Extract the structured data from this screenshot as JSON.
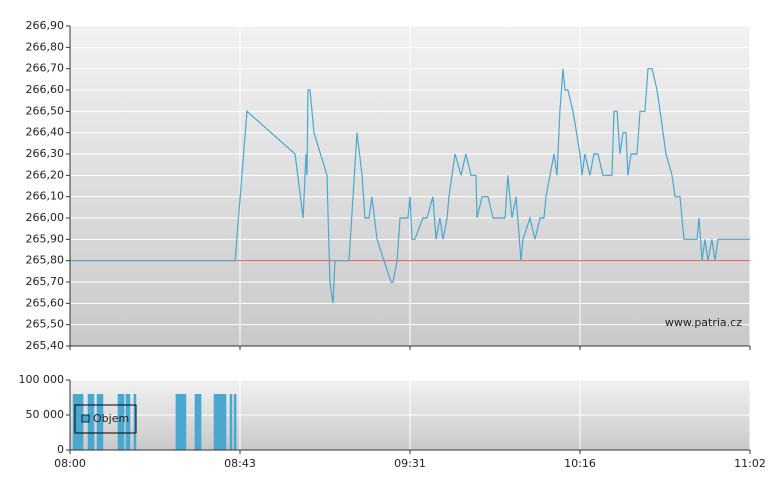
{
  "chart_data": [
    {
      "type": "line",
      "annotation": "www.patria.cz",
      "ylim": [
        265.4,
        266.9
      ],
      "yticks": [
        {
          "value": 265.4,
          "label": "265,40"
        },
        {
          "value": 265.5,
          "label": "265,50"
        },
        {
          "value": 265.6,
          "label": "265,60"
        },
        {
          "value": 265.7,
          "label": "265,70"
        },
        {
          "value": 265.8,
          "label": "265,80"
        },
        {
          "value": 265.9,
          "label": "265,90"
        },
        {
          "value": 266.0,
          "label": "266,00"
        },
        {
          "value": 266.1,
          "label": "266,10"
        },
        {
          "value": 266.2,
          "label": "266,20"
        },
        {
          "value": 266.3,
          "label": "266,30"
        },
        {
          "value": 266.4,
          "label": "266,40"
        },
        {
          "value": 266.5,
          "label": "266,50"
        },
        {
          "value": 266.6,
          "label": "266,60"
        },
        {
          "value": 266.7,
          "label": "266,70"
        },
        {
          "value": 266.8,
          "label": "266,80"
        },
        {
          "value": 266.9,
          "label": "266,90"
        }
      ],
      "reference": {
        "value": 265.8,
        "color": "#e06060"
      },
      "grid": true,
      "series": [
        {
          "color": "#4aa8d0",
          "x": [
            0,
            0.971,
            1.041,
            1.324,
            1.371,
            1.388,
            1.394,
            1.4,
            1.412,
            1.435,
            1.512,
            1.529,
            1.547,
            1.559,
            1.641,
            1.688,
            1.718,
            1.735,
            1.759,
            1.776,
            1.806,
            1.888,
            1.9,
            1.924,
            1.941,
            1.988,
            2.0,
            2.012,
            2.029,
            2.076,
            2.1,
            2.135,
            2.153,
            2.176,
            2.194,
            2.218,
            2.229,
            2.265,
            2.3,
            2.329,
            2.359,
            2.388,
            2.394,
            2.424,
            2.459,
            2.488,
            2.559,
            2.576,
            2.6,
            2.624,
            2.653,
            2.665,
            2.706,
            2.735,
            2.765,
            2.788,
            2.8,
            2.847,
            2.865,
            2.882,
            2.9,
            2.912,
            2.929,
            2.959,
            3.0,
            3.012,
            3.029,
            3.059,
            3.082,
            3.106,
            3.135,
            3.153,
            3.188,
            3.2,
            3.218,
            3.235,
            3.253,
            3.271,
            3.282,
            3.3,
            3.335,
            3.353,
            3.382,
            3.4,
            3.424,
            3.453,
            3.471,
            3.506,
            3.541,
            3.559,
            3.588,
            3.612,
            3.688,
            3.7,
            3.718,
            3.735,
            3.753,
            3.776,
            3.794,
            3.812,
            4
          ],
          "values": [
            265.8,
            265.8,
            266.5,
            266.3,
            266.0,
            266.3,
            266.2,
            266.6,
            266.6,
            266.4,
            266.2,
            265.7,
            265.6,
            265.8,
            265.8,
            266.4,
            266.2,
            266.0,
            266.0,
            266.1,
            265.9,
            265.7,
            265.7,
            265.8,
            266.0,
            266.0,
            266.1,
            265.9,
            265.9,
            266.0,
            266.0,
            266.1,
            265.9,
            266.0,
            265.9,
            266.0,
            266.1,
            266.3,
            266.2,
            266.3,
            266.2,
            266.2,
            266.0,
            266.1,
            266.1,
            266.0,
            266.0,
            266.2,
            266.0,
            266.1,
            265.8,
            265.9,
            266.0,
            265.9,
            266.0,
            266.0,
            266.1,
            266.3,
            266.2,
            266.5,
            266.7,
            266.6,
            266.6,
            266.5,
            266.3,
            266.2,
            266.3,
            266.2,
            266.3,
            266.3,
            266.2,
            266.2,
            266.2,
            266.5,
            266.5,
            266.3,
            266.4,
            266.4,
            266.2,
            266.3,
            266.3,
            266.5,
            266.5,
            266.7,
            266.7,
            266.6,
            266.5,
            266.3,
            266.2,
            266.1,
            266.1,
            265.9,
            265.9,
            266.0,
            265.8,
            265.9,
            265.8,
            265.9,
            265.8,
            265.9,
            265.9
          ]
        }
      ]
    },
    {
      "type": "bar",
      "xlim": [
        0,
        4
      ],
      "xticks": [
        {
          "value": 0,
          "label": "08:00"
        },
        {
          "value": 1,
          "label": "08:43"
        },
        {
          "value": 2,
          "label": "09:31"
        },
        {
          "value": 3,
          "label": "10:16"
        },
        {
          "value": 4,
          "label": "11:02"
        }
      ],
      "ylim": [
        0,
        100000
      ],
      "yticks": [
        0,
        {
          "value": 50000,
          "label": "50 000"
        },
        {
          "value": 100000,
          "label": "100 000"
        }
      ],
      "grid": true,
      "series": [
        {
          "name": "Objem",
          "color": "#4aa8d0",
          "x": [
            0.024,
            0.035,
            0.047,
            0.059,
            0.071,
            0.112,
            0.124,
            0.135,
            0.165,
            0.176,
            0.188,
            0.288,
            0.3,
            0.312,
            0.335,
            0.347,
            0.382,
            0.629,
            0.641,
            0.653,
            0.665,
            0.676,
            0.741,
            0.753,
            0.765,
            0.853,
            0.865,
            0.876,
            0.888,
            0.9,
            0.912,
            0.947,
            0.971
          ],
          "values": [
            80000,
            80000,
            80000,
            80000,
            80000,
            80000,
            80000,
            80000,
            80000,
            80000,
            80000,
            80000,
            80000,
            80000,
            80000,
            80000,
            80000,
            80000,
            80000,
            80000,
            80000,
            80000,
            80000,
            80000,
            80000,
            80000,
            80000,
            80000,
            80000,
            80000,
            80000,
            80000,
            80000
          ]
        }
      ]
    }
  ]
}
